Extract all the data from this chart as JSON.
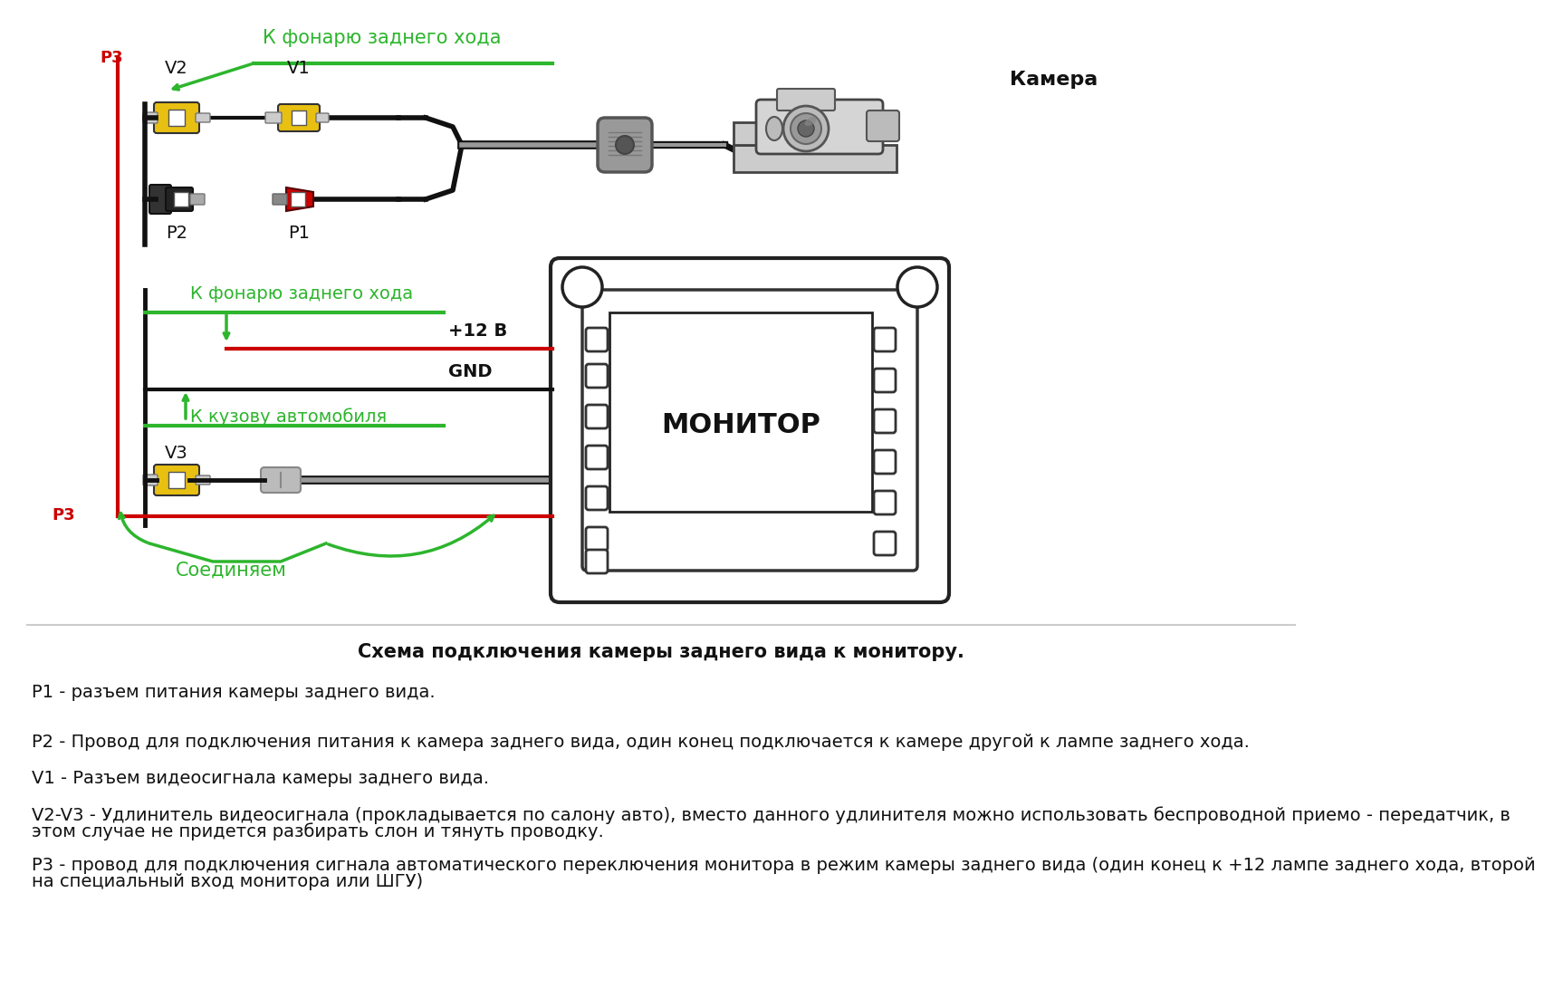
{
  "bg_color": "#ffffff",
  "title_diagram": "Схема подключения камеры заднего вида к монитору.",
  "desc1": "Р1 - разъем питания камеры заднего вида.",
  "desc2": "Р2 - Провод для подключения питания к камера заднего вида, один конец подключается к камере другой к лампе заднего хода.",
  "desc3": "V1 - Разъем видеосигнала камеры заднего вида.",
  "desc4": "V2-V3 - Удлинитель видеосигнала (прокладывается по салону авто), вместо данного удлинителя можно использовать беспроводной приемо - передатчик, в",
  "desc4b": "этом случае не придется разбирать слон и тянуть проводку.",
  "desc5": "Р3 - провод для подключения сигнала автоматического переключения монитора в режим камеры заднего вида (один конец к +12 лампе заднего хода, второй",
  "desc5b": "на специальный вход монитора или ШГУ)",
  "green_color": "#2db52d",
  "red_color": "#cc0000",
  "black_color": "#111111",
  "yellow_color": "#e8c012",
  "gray_color": "#aaaaaa",
  "dark_gray": "#555555",
  "label_camera": "Камера",
  "label_monitor": "МОНИТОР",
  "label_v1": "V1",
  "label_v2": "V2",
  "label_v3": "V3",
  "label_p1": "Р1",
  "label_p2": "Р2",
  "label_p3": "Р3",
  "label_fonary_top": "К фонарю заднего хода",
  "label_fonary_bot": "К фонарю заднего хода",
  "label_12v": "+12 В",
  "label_gnd": "GND",
  "label_kuzov": "К кузову автомобиля",
  "label_soed": "Соединяем"
}
